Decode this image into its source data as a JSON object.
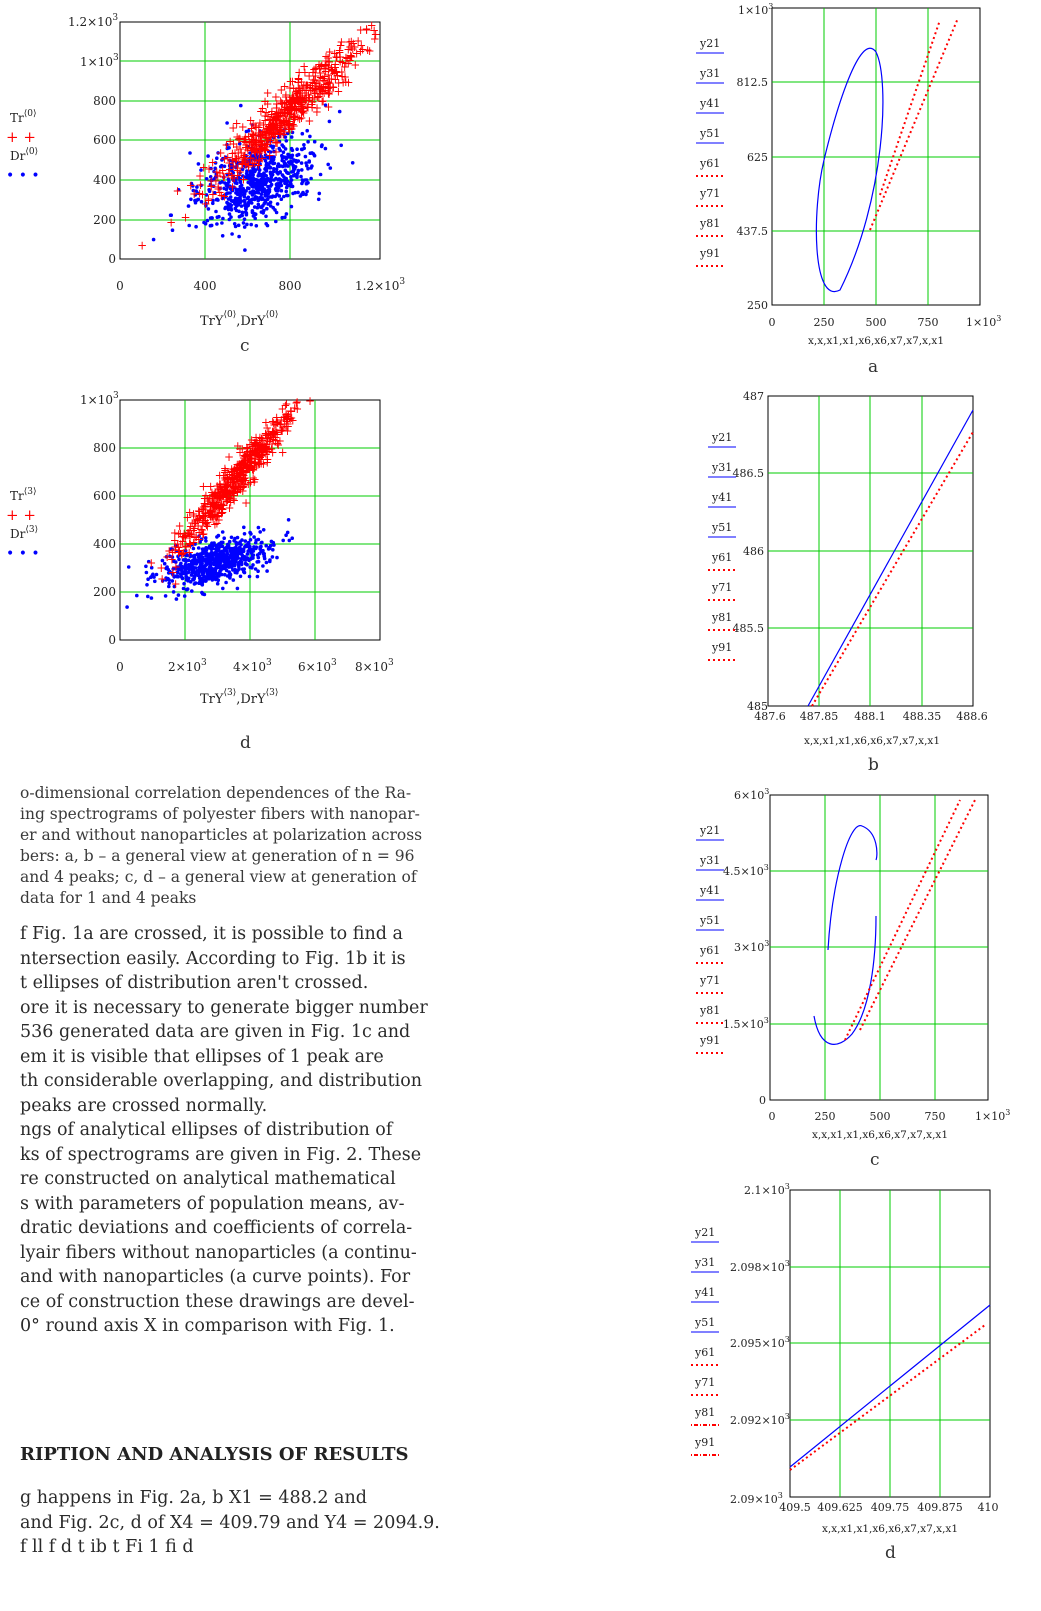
{
  "left_plots": [
    {
      "letter": "c",
      "legend": {
        "tr": "Tr",
        "dr": "Dr",
        "index": "0"
      },
      "y_ticks": [
        "0",
        "200",
        "400",
        "600",
        "800",
        "1×10",
        "1.2×10"
      ],
      "x_ticks": [
        "0",
        "400",
        "800",
        "1.2×10"
      ],
      "x_title": "TrY",
      "x_title2": ",DrY",
      "index": "0",
      "exp": "3"
    },
    {
      "letter": "d",
      "legend": {
        "tr": "Tr",
        "dr": "Dr",
        "index": "3"
      },
      "y_ticks": [
        "0",
        "200",
        "400",
        "600",
        "800",
        "1×10"
      ],
      "x_ticks": [
        "0",
        "2×10",
        "4×10",
        "6×10",
        "8×10"
      ],
      "x_title": "TrY",
      "x_title2": ",DrY",
      "index": "3",
      "exp": "3"
    }
  ],
  "right_plots": [
    {
      "letter": "a",
      "y_ticks": [
        "250",
        "437.5",
        "625",
        "812.5",
        "1×10"
      ],
      "y_top_exp": "3",
      "x_ticks": [
        "0",
        "250",
        "500",
        "750",
        "1×10"
      ],
      "x_last_exp": "3",
      "x_title": "x,x,x1,x1,x6,x6,x7,x7,x,x1",
      "legend": [
        "y21",
        "y31",
        "y41",
        "y51",
        "y61",
        "y71",
        "y81",
        "y91"
      ]
    },
    {
      "letter": "b",
      "y_ticks": [
        "485",
        "485.5",
        "486",
        "486.5",
        "487"
      ],
      "x_ticks": [
        "487.6",
        "487.85",
        "488.1",
        "488.35",
        "488.6"
      ],
      "x_title": "x,x,x1,x1,x6,x6,x7,x7,x,x1",
      "legend": [
        "y21",
        "y31",
        "y41",
        "y51",
        "y61",
        "y71",
        "y81",
        "y91"
      ]
    },
    {
      "letter": "c",
      "y_ticks": [
        "0",
        "1.5×10",
        "3×10",
        "4.5×10",
        "6×10"
      ],
      "y_exp": "3",
      "x_ticks": [
        "0",
        "250",
        "500",
        "750",
        "1×10"
      ],
      "x_last_exp": "3",
      "x_title": "x,x,x1,x1,x6,x6,x7,x7,x,x1",
      "legend": [
        "y21",
        "y31",
        "y41",
        "y51",
        "y61",
        "y71",
        "y81",
        "y91"
      ]
    },
    {
      "letter": "d",
      "y_ticks": [
        "2.09×10",
        "2.092×10",
        "2.095×10",
        "2.098×10",
        "2.1×10"
      ],
      "y_exp": "3",
      "x_ticks": [
        "409.5",
        "409.625",
        "409.75",
        "409.875",
        "410"
      ],
      "x_title": "x,x,x1,x1,x6,x6,x7,x7,x,x1",
      "legend": [
        "y21",
        "y31",
        "y41",
        "y51",
        "y61",
        "y71",
        "y81",
        "y91"
      ]
    }
  ],
  "caption": [
    "o-dimensional correlation dependences of the Ra-",
    "ing spectrograms of polyester fibers with nanopar-",
    "er and without nanoparticles at polarization across",
    "bers: a, b – a general view at generation of n = 96",
    " and 4 peaks; c, d – a general view at generation of",
    "data for 1 and 4 peaks"
  ],
  "body_paragraph": [
    "f Fig. 1a are crossed, it is possible to find a",
    "ntersection easily. According to Fig. 1b it is",
    "t ellipses of distribution aren't crossed.",
    "ore it is necessary to generate bigger number",
    "536 generated data are given in Fig. 1c and",
    "em it is visible that ellipses of 1 peak are",
    "th considerable overlapping, and distribution",
    "peaks are crossed normally.",
    "ngs of analytical ellipses of distribution of",
    "ks of spectrograms are given in Fig. 2. These",
    "re constructed on analytical mathematical",
    "s with parameters of population means, av-",
    "dratic deviations and coefficients of correla-",
    "lyair fibers without nanoparticles (a continu-",
    " and with nanoparticles (a curve points). For",
    "ce of construction these drawings are devel-",
    "0° round axis X in comparison with Fig. 1."
  ],
  "section_heading": "RIPTION AND ANALYSIS OF RESULTS",
  "results_paragraph": [
    "g happens in Fig. 2a, b X1 = 488.2 and",
    " and Fig. 2c, d of X4 = 409.79 and Y4 = 2094.9.",
    "     f ll    f d  t ib t      Fi   1  fi d"
  ],
  "colors": {
    "grid": "#00cc00",
    "red": "#ff0000",
    "blue": "#0000ff"
  }
}
